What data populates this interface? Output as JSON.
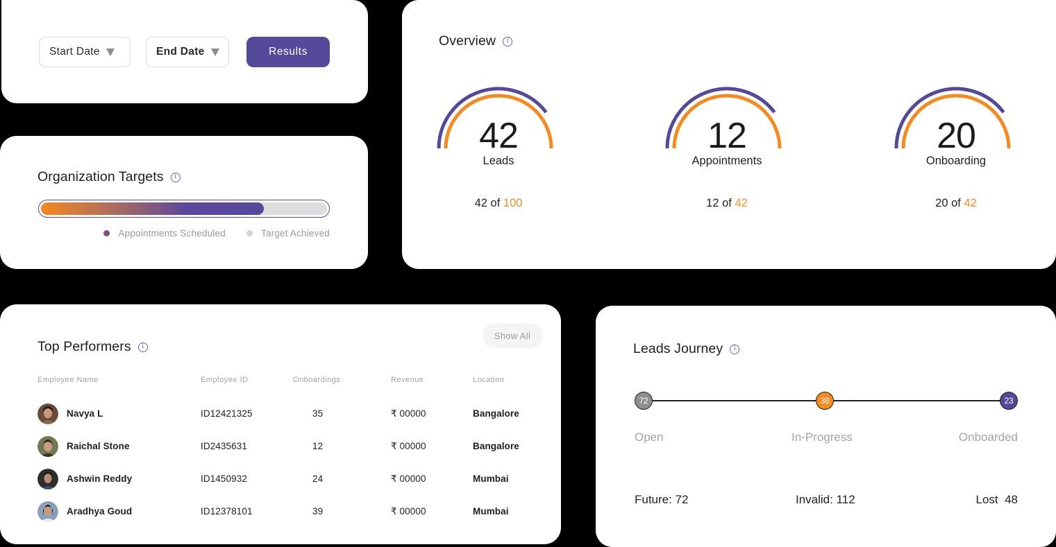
{
  "filters": {
    "start_date_label": "Start Date",
    "end_date_label": "End Date",
    "results_label": "Results"
  },
  "org_targets": {
    "title": "Organization Targets",
    "progress_percent": 78,
    "legend": [
      {
        "label": "Appointments Scheduled"
      },
      {
        "label": "Target Achieved"
      }
    ]
  },
  "overview": {
    "title": "Overview",
    "gauges": [
      {
        "value": "42",
        "label": "Leads",
        "current": "42",
        "of_word": "of",
        "total": "100"
      },
      {
        "value": "12",
        "label": "Appointments",
        "current": "12",
        "of_word": "of",
        "total": "42"
      },
      {
        "value": "20",
        "label": "Onboarding",
        "current": "20",
        "of_word": "of",
        "total": "42"
      }
    ]
  },
  "top_performers": {
    "title": "Top Performers",
    "show_all_label": "Show All",
    "columns": [
      "Employee Name",
      "Employee ID",
      "Onboardings",
      "Revenue",
      "Location"
    ],
    "rows": [
      {
        "name": "Navya L",
        "id": "ID12421325",
        "onboardings": "35",
        "revenue": "₹ 00000",
        "location": "Bangalore"
      },
      {
        "name": "Raichal Stone",
        "id": "ID2435631",
        "onboardings": "12",
        "revenue": "₹ 00000",
        "location": "Bangalore"
      },
      {
        "name": "Ashwin Reddy",
        "id": "ID1450932",
        "onboardings": "24",
        "revenue": "₹ 00000",
        "location": "Mumbai"
      },
      {
        "name": "Aradhya Goud",
        "id": "ID12378101",
        "onboardings": "39",
        "revenue": "₹ 00000",
        "location": "Mumbai"
      }
    ]
  },
  "leads_journey": {
    "title": "Leads Journey",
    "stages": [
      {
        "count": "72",
        "label": "Open",
        "color": "#8f8f8f"
      },
      {
        "count": "38",
        "label": "In-Progress",
        "color": "#f58a1f"
      },
      {
        "count": "23",
        "label": "Onboarded",
        "color": "#54499b"
      }
    ],
    "stats": {
      "future": "Future: 72",
      "invalid": "Invalid: 112",
      "lost": "Lost  48"
    }
  },
  "colors": {
    "primary": "#54499b",
    "accent": "#f58a1f",
    "muted": "#a5a5a5"
  }
}
